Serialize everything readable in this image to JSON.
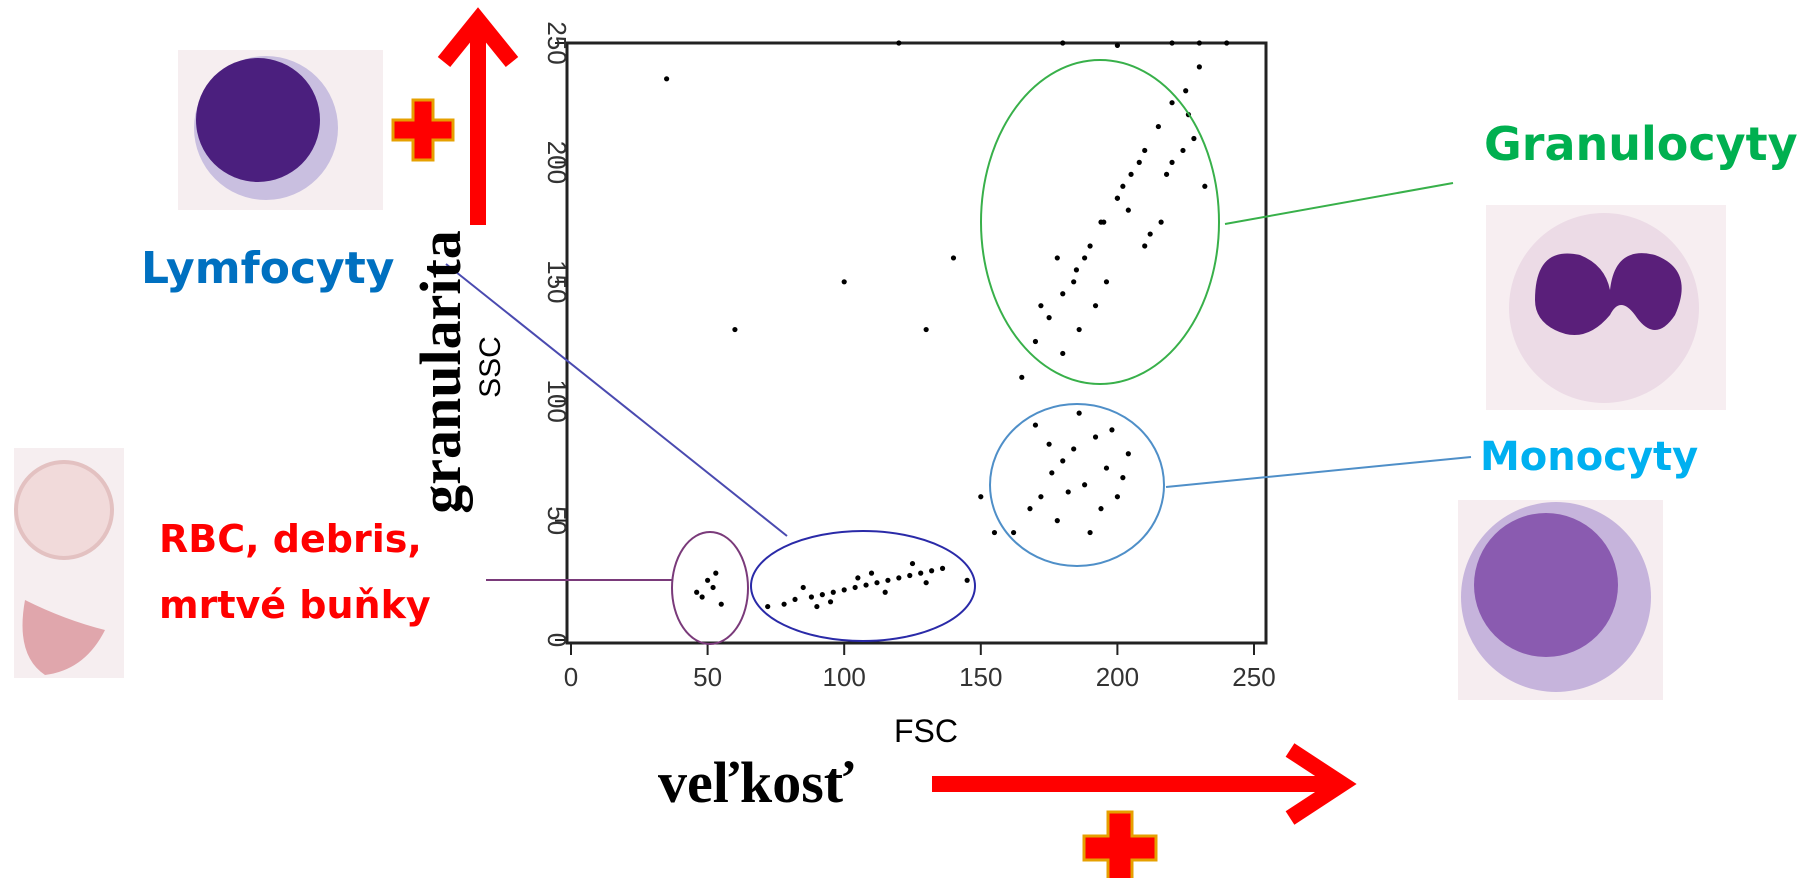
{
  "chart_data": {
    "type": "scatter",
    "x_label": "FSC",
    "y_label": "SSC",
    "x_description": "veľkosť",
    "y_description": "granularita",
    "annotations": [
      "Granulocyty",
      "Monocyty",
      "Lymfocyty",
      "RBC, debris,",
      "mrtvé buňky"
    ],
    "color": "#000000",
    "xlim": [
      0,
      250
    ],
    "ylim": [
      0,
      250
    ],
    "xticks": [
      0,
      50,
      100,
      150,
      200,
      250
    ],
    "yticks": [
      0,
      50,
      100,
      150,
      200,
      250
    ],
    "x": [
      48,
      52,
      55,
      50,
      46,
      53,
      72,
      78,
      82,
      88,
      92,
      96,
      100,
      104,
      108,
      112,
      116,
      120,
      124,
      128,
      132,
      136,
      85,
      95,
      105,
      115,
      125,
      90,
      110,
      130,
      162,
      168,
      172,
      176,
      180,
      184,
      188,
      192,
      196,
      200,
      204,
      170,
      178,
      186,
      194,
      202,
      175,
      190,
      182,
      198,
      165,
      170,
      175,
      180,
      185,
      190,
      195,
      200,
      205,
      210,
      215,
      220,
      225,
      230,
      172,
      180,
      188,
      196,
      204,
      212,
      220,
      228,
      178,
      186,
      194,
      202,
      210,
      218,
      226,
      184,
      192,
      200,
      208,
      216,
      224,
      232,
      60,
      100,
      130,
      140,
      150,
      35,
      155,
      145,
      120,
      180,
      200,
      220,
      240,
      230
    ],
    "y": [
      18,
      22,
      15,
      25,
      20,
      28,
      14,
      15,
      17,
      18,
      19,
      20,
      21,
      22,
      23,
      24,
      25,
      26,
      27,
      28,
      29,
      30,
      22,
      16,
      26,
      20,
      32,
      14,
      28,
      24,
      45,
      55,
      60,
      70,
      75,
      80,
      65,
      85,
      72,
      60,
      78,
      90,
      50,
      95,
      55,
      68,
      82,
      45,
      62,
      88,
      110,
      125,
      135,
      145,
      155,
      165,
      175,
      185,
      195,
      205,
      215,
      225,
      230,
      240,
      140,
      120,
      160,
      150,
      180,
      170,
      200,
      210,
      160,
      130,
      175,
      190,
      165,
      195,
      220,
      150,
      140,
      185,
      200,
      175,
      205,
      190,
      130,
      150,
      130,
      160,
      60,
      235,
      45,
      25,
      250,
      250,
      249,
      250,
      250,
      250
    ]
  }
}
